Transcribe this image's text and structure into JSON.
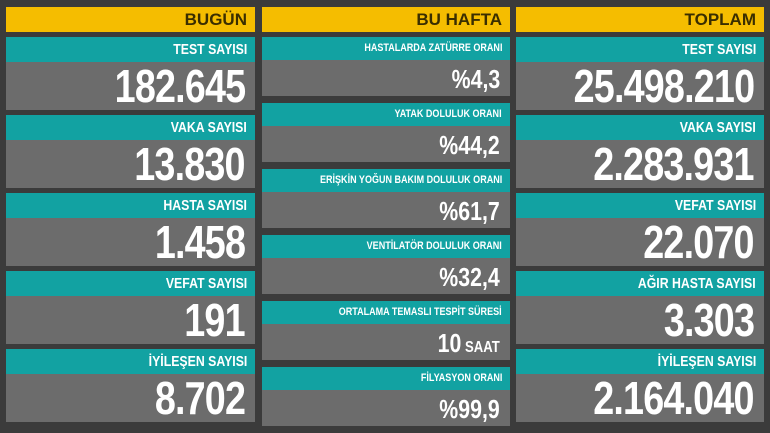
{
  "today": {
    "title": "BUGÜN",
    "items": [
      {
        "label": "TEST SAYISI",
        "value": "182.645"
      },
      {
        "label": "VAKA SAYISI",
        "value": "13.830"
      },
      {
        "label": "HASTA SAYISI",
        "value": "1.458"
      },
      {
        "label": "VEFAT SAYISI",
        "value": "191"
      },
      {
        "label": "İYİLEŞEN SAYISI",
        "value": "8.702"
      }
    ]
  },
  "week": {
    "title": "BU HAFTA",
    "items": [
      {
        "label": "HASTALARDA ZATÜRRE ORANI",
        "value": "%4,3",
        "unit": ""
      },
      {
        "label": "YATAK DOLULUK ORANI",
        "value": "%44,2",
        "unit": ""
      },
      {
        "label": "ERİŞKİN YOĞUN BAKIM DOLULUK ORANI",
        "value": "%61,7",
        "unit": ""
      },
      {
        "label": "VENTİLATÖR DOLULUK ORANI",
        "value": "%32,4",
        "unit": ""
      },
      {
        "label": "ORTALAMA TEMASLI TESPİT SÜRESİ",
        "value": "10",
        "unit": " SAAT"
      },
      {
        "label": "FİLYASYON ORANI",
        "value": "%99,9",
        "unit": ""
      }
    ]
  },
  "total": {
    "title": "TOPLAM",
    "items": [
      {
        "label": "TEST SAYISI",
        "value": "25.498.210"
      },
      {
        "label": "VAKA SAYISI",
        "value": "2.283.931"
      },
      {
        "label": "VEFAT SAYISI",
        "value": "22.070"
      },
      {
        "label": "AĞIR HASTA SAYISI",
        "value": "3.303"
      },
      {
        "label": "İYİLEŞEN SAYISI",
        "value": "2.164.040"
      }
    ]
  },
  "colors": {
    "header": "#f5bd00",
    "label": "#12a2a2",
    "value": "#6c6c6c",
    "background": "#3b3b3b"
  }
}
